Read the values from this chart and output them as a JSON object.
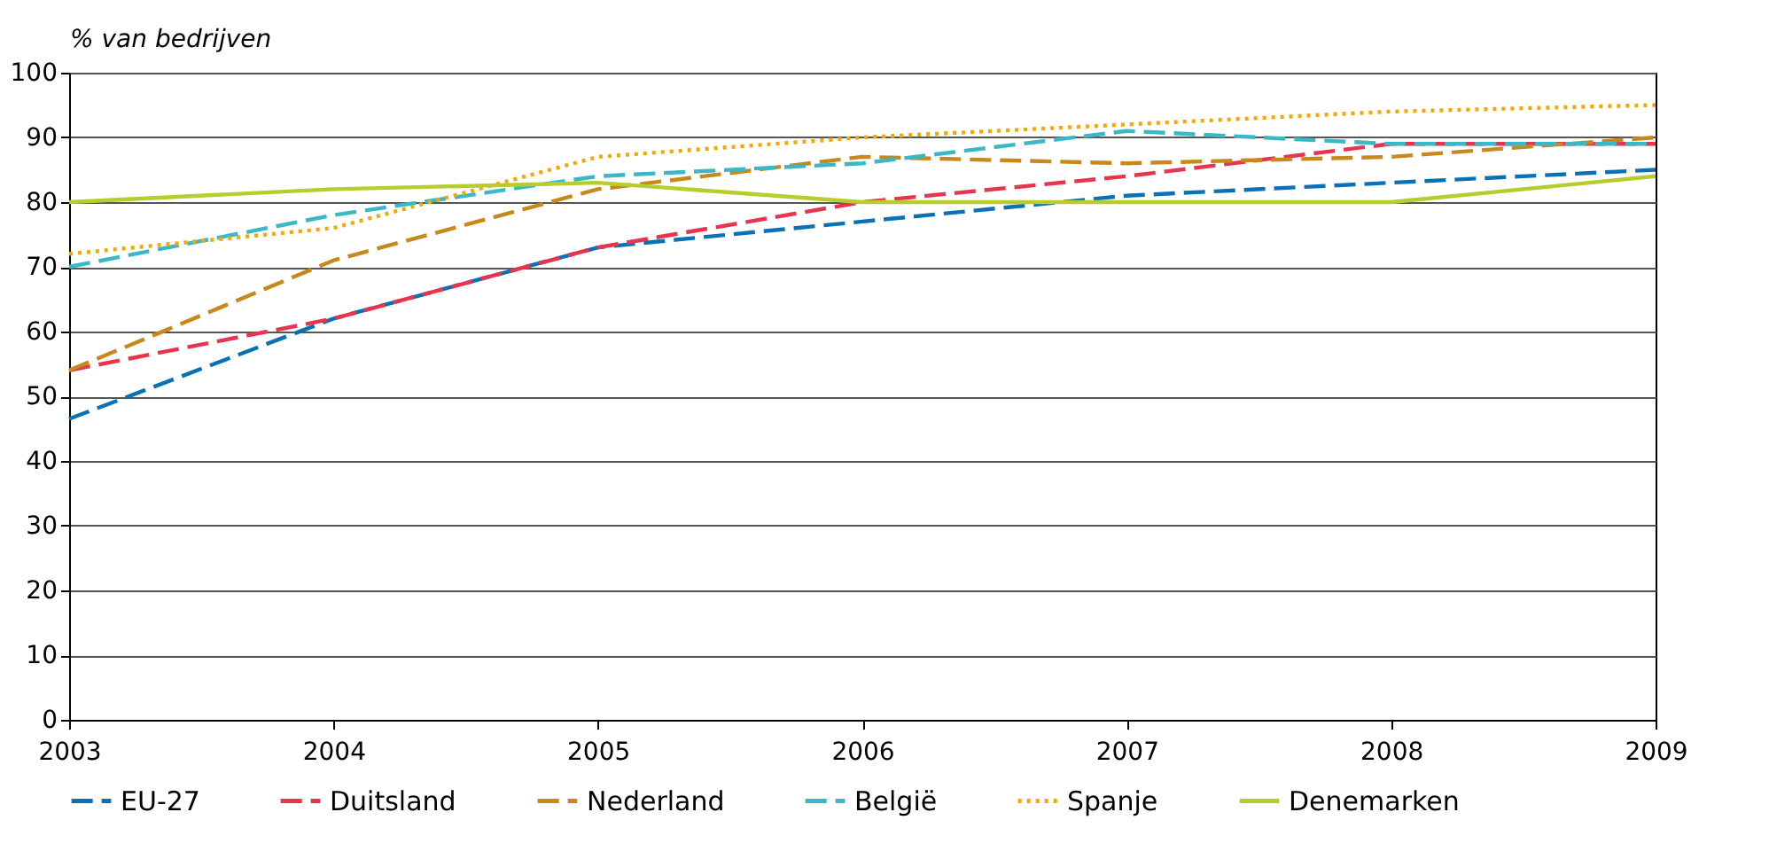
{
  "chart_data": {
    "type": "line",
    "ylabel": "% van bedrijven",
    "x": [
      2003,
      2004,
      2005,
      2006,
      2007,
      2008,
      2009
    ],
    "xlim": [
      2003,
      2009
    ],
    "xticks": [
      2003,
      2004,
      2005,
      2006,
      2007,
      2008,
      2009
    ],
    "ylim": [
      0,
      100
    ],
    "yticks": [
      0,
      10,
      20,
      30,
      40,
      50,
      60,
      70,
      80,
      90,
      100
    ],
    "grid": "y",
    "legend": "bottom",
    "marker": "none",
    "series": [
      {
        "name": "EU-27",
        "color": "#0a72b4",
        "line_style": "dashed",
        "values": [
          46.5,
          62,
          73,
          77,
          81,
          83,
          85
        ]
      },
      {
        "name": "Duitsland",
        "color": "#e8344e",
        "line_style": "dashed",
        "values": [
          54,
          62,
          73,
          80,
          84,
          89,
          89
        ]
      },
      {
        "name": "Nederland",
        "color": "#c8891c",
        "line_style": "dashed",
        "values": [
          54,
          71,
          82,
          87,
          86,
          87,
          90
        ]
      },
      {
        "name": "België",
        "color": "#3ab8c8",
        "line_style": "dashed",
        "values": [
          70,
          78,
          84,
          86,
          91,
          89,
          89
        ]
      },
      {
        "name": "Spanje",
        "color": "#f5a800",
        "line_style": "dotted",
        "values": [
          72,
          76,
          87,
          90,
          92,
          94,
          95
        ]
      },
      {
        "name": "Denemarken",
        "color": "#b8cc2c",
        "line_style": "solid",
        "values": [
          80,
          82,
          83,
          80,
          80,
          80,
          84
        ]
      }
    ]
  }
}
